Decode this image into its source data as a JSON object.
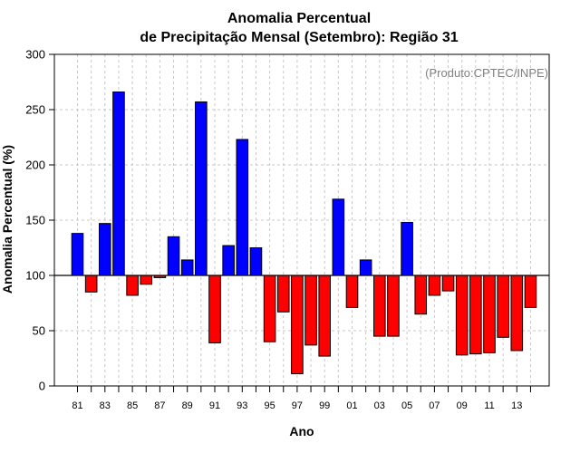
{
  "chart_data": {
    "type": "bar",
    "title": "Anomalia Percentual",
    "subtitle": "de Precipitação Mensal (Setembro): Região 31",
    "credit": "(Produto:CPTEC/INPE)",
    "xlabel": "Ano",
    "ylabel": "Anomalia Percentual (%)",
    "ylim": [
      0,
      300
    ],
    "yticks": [
      0,
      50,
      100,
      150,
      200,
      250,
      300
    ],
    "baseline": 100,
    "grid": true,
    "colors": {
      "above": "#0000ff",
      "below": "#ff0000"
    },
    "categories": [
      "81",
      "82",
      "83",
      "84",
      "85",
      "86",
      "87",
      "88",
      "89",
      "90",
      "91",
      "92",
      "93",
      "94",
      "95",
      "96",
      "97",
      "98",
      "99",
      "00",
      "01",
      "02",
      "03",
      "04",
      "05",
      "06",
      "07",
      "08",
      "09",
      "10",
      "11",
      "12",
      "13",
      "14"
    ],
    "xtick_labels": [
      "81",
      "83",
      "85",
      "87",
      "89",
      "91",
      "93",
      "95",
      "97",
      "99",
      "01",
      "03",
      "05",
      "07",
      "09",
      "11",
      "13"
    ],
    "values": [
      138,
      85,
      147,
      266,
      82,
      92,
      98,
      135,
      114,
      257,
      39,
      127,
      223,
      125,
      40,
      67,
      11,
      37,
      27,
      169,
      71,
      114,
      45,
      45,
      148,
      65,
      82,
      86,
      28,
      29,
      30,
      44,
      32,
      71
    ]
  }
}
